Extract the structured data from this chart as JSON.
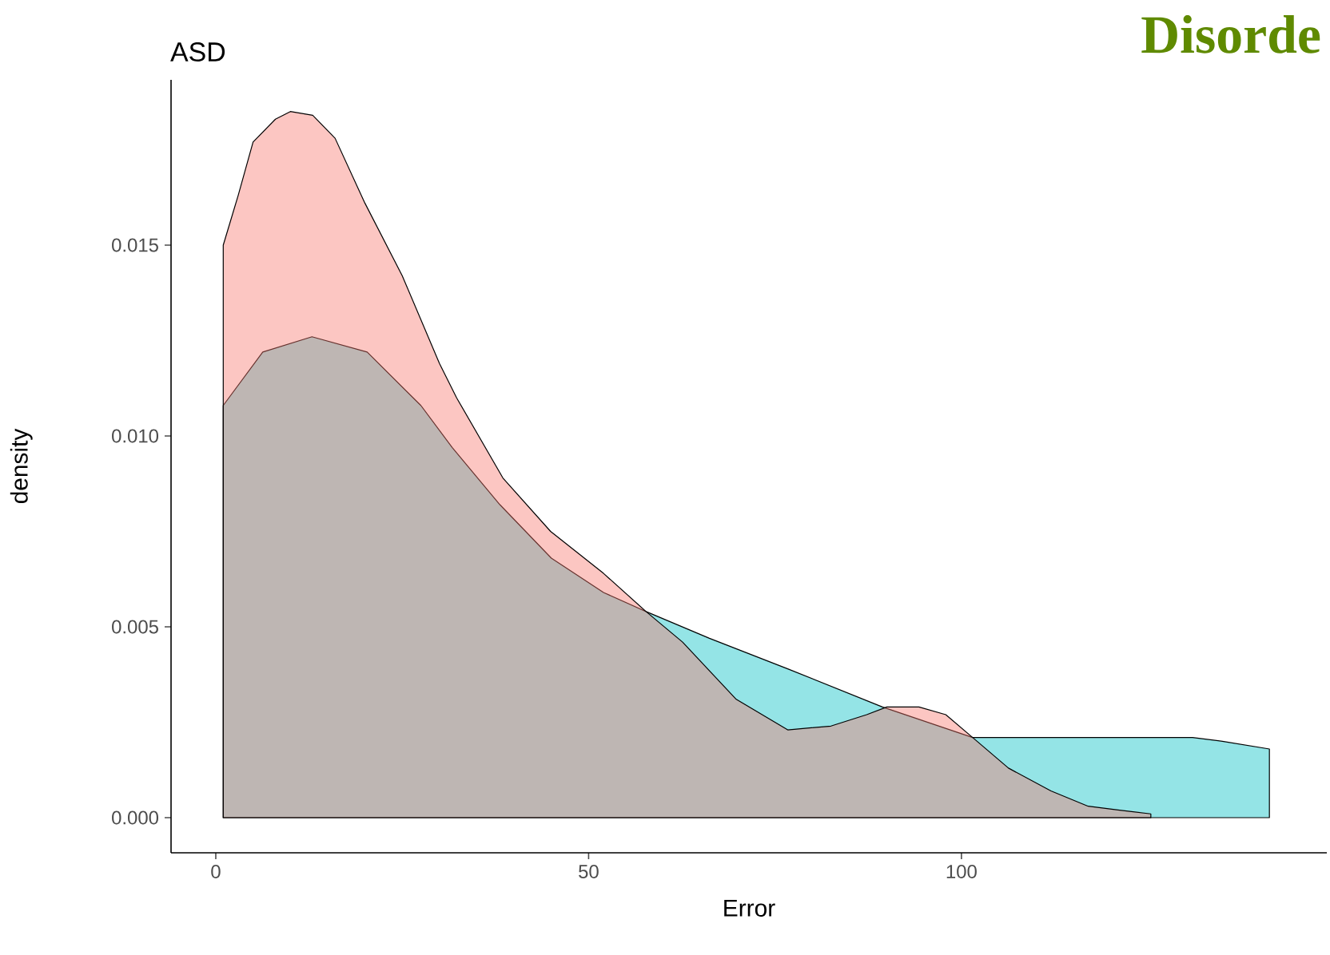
{
  "chart_data": {
    "type": "area",
    "title": "ASD",
    "xlabel": "Error",
    "ylabel": "density",
    "annotations": [
      "Disorde"
    ],
    "xlim": [
      -6,
      149
    ],
    "xticks": [
      0,
      50,
      100
    ],
    "ylim": [
      -0.00092,
      0.01933
    ],
    "yticks": [
      {
        "value": 0,
        "label": "0.000"
      },
      {
        "value": 0.005,
        "label": "0.005"
      },
      {
        "value": 0.01,
        "label": "0.010"
      },
      {
        "value": 0.015,
        "label": "0.015"
      }
    ],
    "grid": false,
    "line_style": "solid",
    "series": [
      {
        "color": "#00BFC4",
        "x": [
          1,
          6.3,
          12.9,
          20.3,
          27.5,
          31.7,
          38.1,
          45,
          52,
          57.7,
          66.2,
          76.7,
          89.4,
          101.5,
          106,
          115,
          131,
          135,
          141.3
        ],
        "values": [
          0.0108,
          0.0122,
          0.0126,
          0.0122,
          0.0108,
          0.0097,
          0.0082,
          0.0068,
          0.0059,
          0.0054,
          0.0047,
          0.0039,
          0.0029,
          0.0021,
          0.0021,
          0.0021,
          0.0021,
          0.002,
          0.0018
        ]
      },
      {
        "color": "#F8766D",
        "x": [
          1,
          3,
          5,
          8,
          10,
          13,
          16,
          20,
          25,
          30,
          32.3,
          38.5,
          44.9,
          52,
          57.7,
          62.6,
          69.8,
          76.7,
          82.5,
          87.3,
          90,
          94.3,
          97.9,
          101.5,
          106.3,
          112,
          117,
          121,
          125.4
        ],
        "values": [
          0.015,
          0.0163,
          0.0177,
          0.0183,
          0.0185,
          0.0184,
          0.0178,
          0.0161,
          0.0142,
          0.0119,
          0.011,
          0.0089,
          0.0075,
          0.0064,
          0.0054,
          0.0046,
          0.0031,
          0.0023,
          0.0024,
          0.0027,
          0.0029,
          0.0029,
          0.0027,
          0.0021,
          0.0013,
          0.0007,
          0.0003,
          0.0002,
          0.0001
        ]
      }
    ]
  }
}
